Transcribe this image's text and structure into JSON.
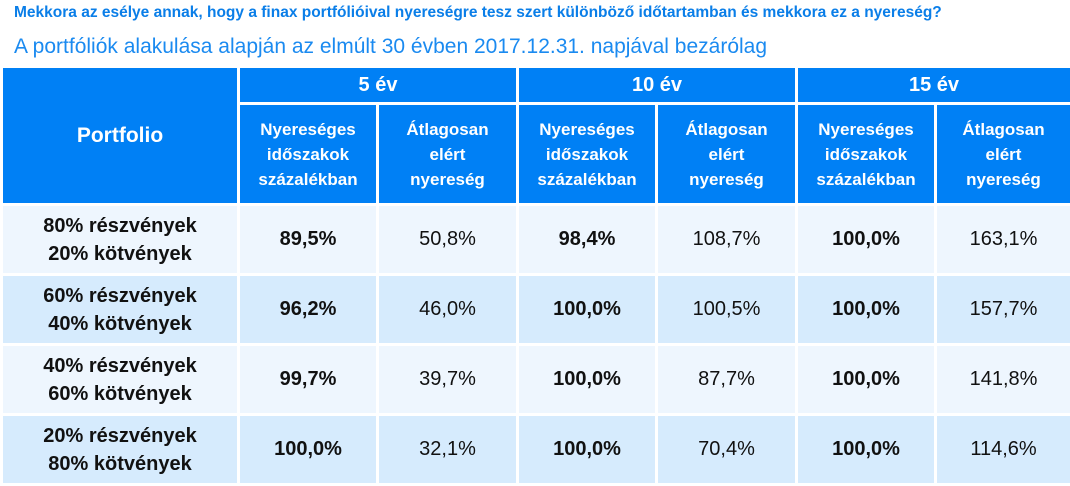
{
  "question": "Mekkora az esélye annak, hogy a finax portfólióival nyereségre tesz szert különböző időtartamban és mekkora ez a nyereség?",
  "subtitle": "A portfóliók alakulása alapján az elmúlt 30 évben 2017.12.31. napjával bezárólag",
  "colors": {
    "header": "#0080f5",
    "row_light": "#eef6fe",
    "row_dark": "#d6ebfd",
    "title": "#0a7ee8"
  },
  "table": {
    "portfolio_header": "Portfolio",
    "periods": [
      "5 év",
      "10 év",
      "15 év"
    ],
    "sub_headers": [
      [
        "Nyereséges",
        "időszakok",
        "százalékban"
      ],
      [
        "Átlagosan",
        "elért",
        "nyereség"
      ]
    ],
    "rows": [
      {
        "line1": "80% részvények",
        "line2": "20% kötvények",
        "values": [
          "89,5%",
          "50,8%",
          "98,4%",
          "108,7%",
          "100,0%",
          "163,1%"
        ]
      },
      {
        "line1": "60% részvények",
        "line2": "40% kötvények",
        "values": [
          "96,2%",
          "46,0%",
          "100,0%",
          "100,5%",
          "100,0%",
          "157,7%"
        ]
      },
      {
        "line1": "40% részvények",
        "line2": "60% kötvények",
        "values": [
          "99,7%",
          "39,7%",
          "100,0%",
          "87,7%",
          "100,0%",
          "141,8%"
        ]
      },
      {
        "line1": "20% részvények",
        "line2": "80% kötvények",
        "values": [
          "100,0%",
          "32,1%",
          "100,0%",
          "70,4%",
          "100,0%",
          "114,6%"
        ]
      }
    ]
  }
}
